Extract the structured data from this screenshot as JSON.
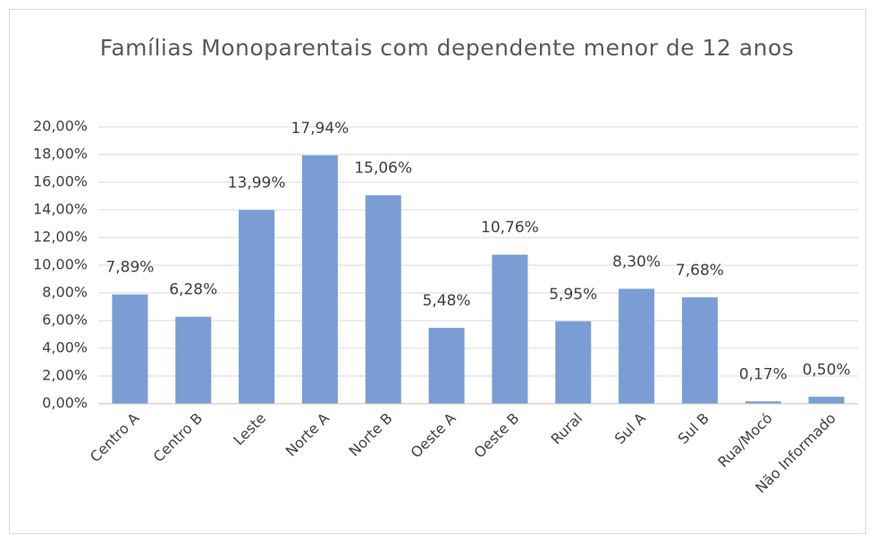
{
  "chart_data": {
    "type": "bar",
    "title": "Famílias Monoparentais com dependente menor de 12 anos",
    "categories": [
      "Centro A",
      "Centro B",
      "Leste",
      "Norte A",
      "Norte B",
      "Oeste A",
      "Oeste B",
      "Rural",
      "Sul A",
      "Sul B",
      "Rua/Mocó",
      "Não Informado"
    ],
    "values": [
      7.89,
      6.28,
      13.99,
      17.94,
      15.06,
      5.48,
      10.76,
      5.95,
      8.3,
      7.68,
      0.17,
      0.5
    ],
    "value_labels": [
      "7,89%",
      "6,28%",
      "13,99%",
      "17,94%",
      "15,06%",
      "5,48%",
      "10,76%",
      "5,95%",
      "8,30%",
      "7,68%",
      "0,17%",
      "0,50%"
    ],
    "color": "#7a9dd6",
    "ylim": [
      0,
      20
    ],
    "yticks": [
      {
        "value": 0,
        "label": "0,00%"
      },
      {
        "value": 2,
        "label": "2,00%"
      },
      {
        "value": 4,
        "label": "4,00%"
      },
      {
        "value": 6,
        "label": "6,00%"
      },
      {
        "value": 8,
        "label": "8,00%"
      },
      {
        "value": 10,
        "label": "10,00%"
      },
      {
        "value": 12,
        "label": "12,00%"
      },
      {
        "value": 14,
        "label": "14,00%"
      },
      {
        "value": 16,
        "label": "16,00%"
      },
      {
        "value": 18,
        "label": "18,00%"
      },
      {
        "value": 20,
        "label": "20,00%"
      }
    ],
    "grid": true
  }
}
